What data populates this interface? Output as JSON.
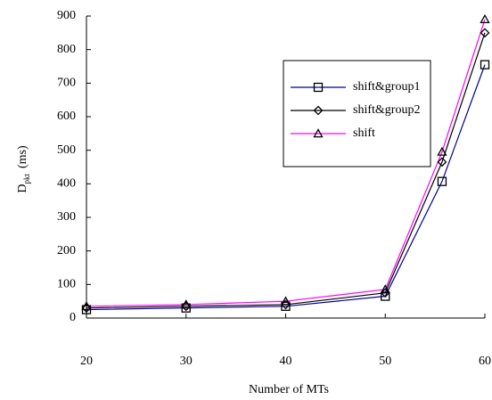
{
  "chart_data": {
    "type": "line",
    "xlabel": "Number of MTs",
    "ylabel": [
      "D",
      "pkt",
      "(ms)"
    ],
    "x": [
      20,
      30,
      40,
      50,
      55.7,
      60
    ],
    "xlim": [
      20,
      60
    ],
    "xticks": [
      20,
      30,
      40,
      50,
      60
    ],
    "ylim": [
      0,
      900
    ],
    "yticks": [
      0,
      100,
      200,
      300,
      400,
      500,
      600,
      700,
      800,
      900
    ],
    "grid": false,
    "legend": "upper right",
    "series": [
      {
        "name": "shift&group1",
        "color": "#00008b",
        "marker": "square",
        "values": [
          25,
          30,
          35,
          65,
          407,
          755
        ]
      },
      {
        "name": "shift&group2",
        "color": "#000000",
        "marker": "diamond",
        "values": [
          30,
          35,
          40,
          75,
          465,
          850
        ]
      },
      {
        "name": "shift",
        "color": "#ff00ff",
        "marker": "triangle",
        "values": [
          35,
          40,
          50,
          85,
          495,
          890
        ]
      }
    ]
  }
}
